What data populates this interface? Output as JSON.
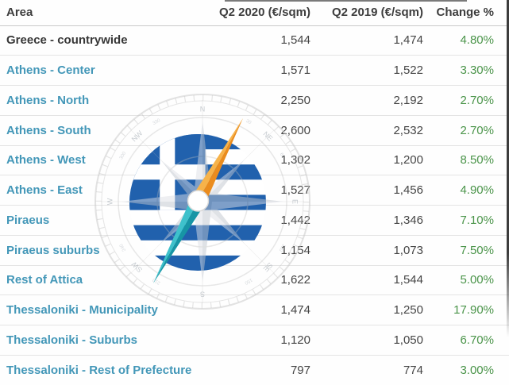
{
  "table": {
    "headers": [
      {
        "label": "Area"
      },
      {
        "label": "Q2 2020 (€/sqm)"
      },
      {
        "label": "Q2 2019 (€/sqm)"
      },
      {
        "label": "Change %"
      }
    ],
    "rows": [
      {
        "area": "Greece - countrywide",
        "is_link": false,
        "q2_2020": "1,544",
        "q2_2019": "1,474",
        "change": "4.80%"
      },
      {
        "area": "Athens - Center",
        "is_link": true,
        "q2_2020": "1,571",
        "q2_2019": "1,522",
        "change": "3.30%"
      },
      {
        "area": "Athens - North",
        "is_link": true,
        "q2_2020": "2,250",
        "q2_2019": "2,192",
        "change": "2.70%"
      },
      {
        "area": "Athens - South",
        "is_link": true,
        "q2_2020": "2,600",
        "q2_2019": "2,532",
        "change": "2.70%"
      },
      {
        "area": "Athens - West",
        "is_link": true,
        "q2_2020": "1,302",
        "q2_2019": "1,200",
        "change": "8.50%"
      },
      {
        "area": "Athens - East",
        "is_link": true,
        "q2_2020": "1,527",
        "q2_2019": "1,456",
        "change": "4.90%"
      },
      {
        "area": "Piraeus",
        "is_link": true,
        "q2_2020": "1,442",
        "q2_2019": "1,346",
        "change": "7.10%"
      },
      {
        "area": "Piraeus suburbs",
        "is_link": true,
        "q2_2020": "1,154",
        "q2_2019": "1,073",
        "change": "7.50%"
      },
      {
        "area": "Rest of Attica",
        "is_link": true,
        "q2_2020": "1,622",
        "q2_2019": "1,544",
        "change": "5.00%"
      },
      {
        "area": "Thessaloniki - Municipality",
        "is_link": true,
        "q2_2020": "1,474",
        "q2_2019": "1,250",
        "change": "17.90%"
      },
      {
        "area": "Thessaloniki - Suburbs",
        "is_link": true,
        "q2_2020": "1,120",
        "q2_2019": "1,050",
        "change": "6.70%"
      },
      {
        "area": "Thessaloniki - Rest of Prefecture",
        "is_link": true,
        "q2_2020": "797",
        "q2_2019": "774",
        "change": "3.00%"
      }
    ]
  },
  "colors": {
    "link": "#4397b8",
    "positive_change": "#4a9449",
    "header_text": "#3d3d3d",
    "body_text": "#454545",
    "flag_blue": "#2161ad",
    "needle_orange": "#ea8c1e",
    "needle_teal": "#27b2c0"
  },
  "watermark": {
    "kind": "compass-with-greek-flag",
    "compass_points": [
      "N",
      "NE",
      "E",
      "SE",
      "S",
      "SW",
      "W",
      "NW"
    ],
    "degree_labels": [
      "30",
      "60",
      "120",
      "150",
      "210",
      "240",
      "300",
      "330"
    ]
  }
}
